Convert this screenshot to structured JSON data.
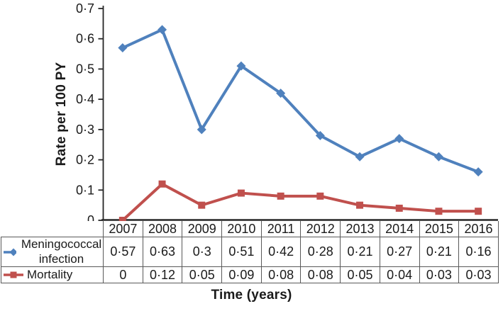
{
  "chart": {
    "y_axis_title": "Rate per 100 PY",
    "x_axis_title": "Time (years)",
    "y_tick_labels": [
      "0",
      "0·1",
      "0·2",
      "0·3",
      "0·4",
      "0·5",
      "0·6",
      "0·7"
    ],
    "y_tick_values": [
      0,
      0.1,
      0.2,
      0.3,
      0.4,
      0.5,
      0.6,
      0.7
    ]
  },
  "chart_data": {
    "type": "line",
    "categories": [
      "2007",
      "2008",
      "2009",
      "2010",
      "2011",
      "2012",
      "2013",
      "2014",
      "2015",
      "2016"
    ],
    "series": [
      {
        "name": "Meningococcal infection",
        "values": [
          0.57,
          0.63,
          0.3,
          0.51,
          0.42,
          0.28,
          0.21,
          0.27,
          0.21,
          0.16
        ],
        "display": [
          "0·57",
          "0·63",
          "0·3",
          "0·51",
          "0·42",
          "0·28",
          "0·21",
          "0·27",
          "0·21",
          "0·16"
        ],
        "color": "#4F81BD",
        "marker": "diamond"
      },
      {
        "name": "Mortality",
        "values": [
          0,
          0.12,
          0.05,
          0.09,
          0.08,
          0.08,
          0.05,
          0.04,
          0.03,
          0.03
        ],
        "display": [
          "0",
          "0·12",
          "0·05",
          "0·09",
          "0·08",
          "0·08",
          "0·05",
          "0·04",
          "0·03",
          "0·03"
        ],
        "color": "#C0504D",
        "marker": "square"
      }
    ],
    "title": "",
    "xlabel": "Time (years)",
    "ylabel": "Rate per 100 PY",
    "ylim": [
      0,
      0.7
    ],
    "grid": false,
    "legend_position": "table-left",
    "colors": {
      "axis": "#262626",
      "table_border": "#595959",
      "series_blue": "#4F81BD",
      "series_red": "#C0504D"
    }
  }
}
